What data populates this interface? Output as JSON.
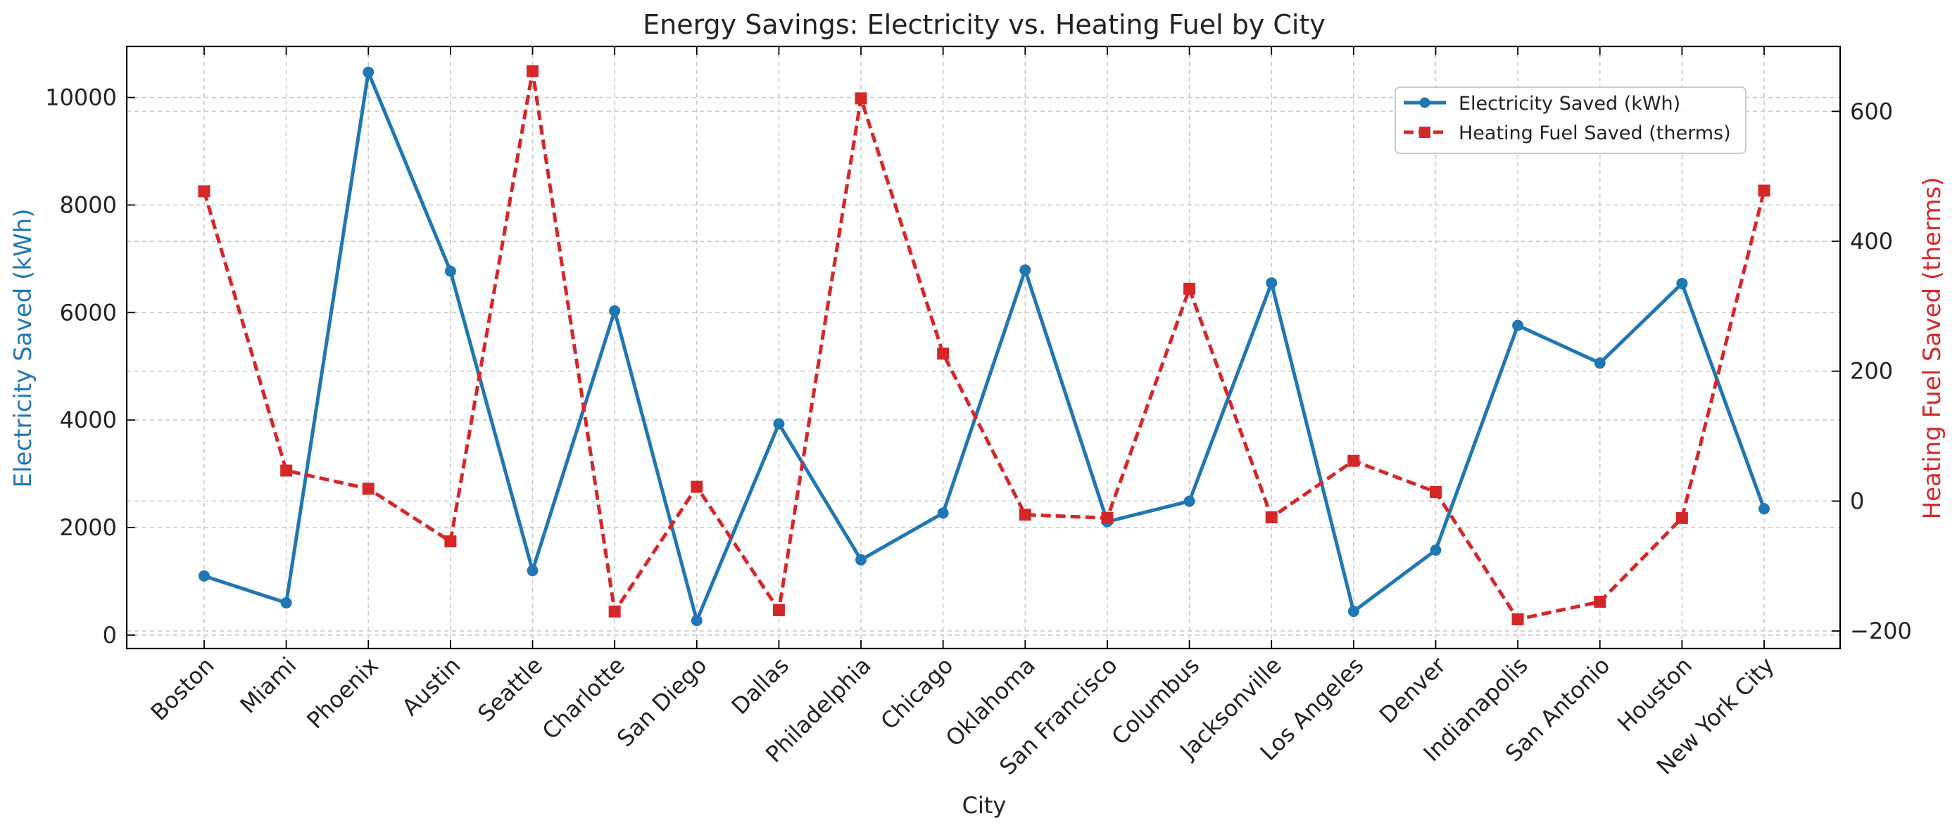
{
  "chart_data": {
    "type": "line",
    "title": "Energy Savings: Electricity vs. Heating Fuel by City",
    "xlabel": "City",
    "ylabel_left": "Electricity Saved (kWh)",
    "ylabel_right": "Heating Fuel Saved (therms)",
    "categories": [
      "Boston",
      "Miami",
      "Phoenix",
      "Austin",
      "Seattle",
      "Charlotte",
      "San Diego",
      "Dallas",
      "Philadelphia",
      "Chicago",
      "Oklahoma",
      "San Francisco",
      "Columbus",
      "Jacksonville",
      "Los Angeles",
      "Denver",
      "Indianapolis",
      "San Antonio",
      "Houston",
      "New York City"
    ],
    "ylim_left": [
      -250,
      10950
    ],
    "ylim_right": [
      -227,
      700
    ],
    "yticks_left": [
      0,
      2000,
      4000,
      6000,
      8000,
      10000
    ],
    "yticks_right": [
      -200,
      0,
      200,
      400,
      600
    ],
    "grid": true,
    "legend_position": "upper-right",
    "series": [
      {
        "name": "Electricity Saved (kWh)",
        "axis": "left",
        "color": "#1f77b4",
        "marker": "circle",
        "linestyle": "solid",
        "values": [
          1100,
          600,
          10470,
          6770,
          1200,
          6030,
          270,
          3930,
          1400,
          2270,
          6790,
          2110,
          2490,
          6550,
          440,
          1580,
          5760,
          5060,
          6540,
          2350
        ]
      },
      {
        "name": "Heating Fuel Saved (therms)",
        "axis": "right",
        "color": "#d62728",
        "marker": "square",
        "linestyle": "dashed",
        "values": [
          477,
          47,
          19,
          -62,
          662,
          -170,
          22,
          -168,
          620,
          227,
          -21,
          -26,
          327,
          -25,
          62,
          14,
          -182,
          -155,
          -26,
          478
        ]
      }
    ]
  }
}
